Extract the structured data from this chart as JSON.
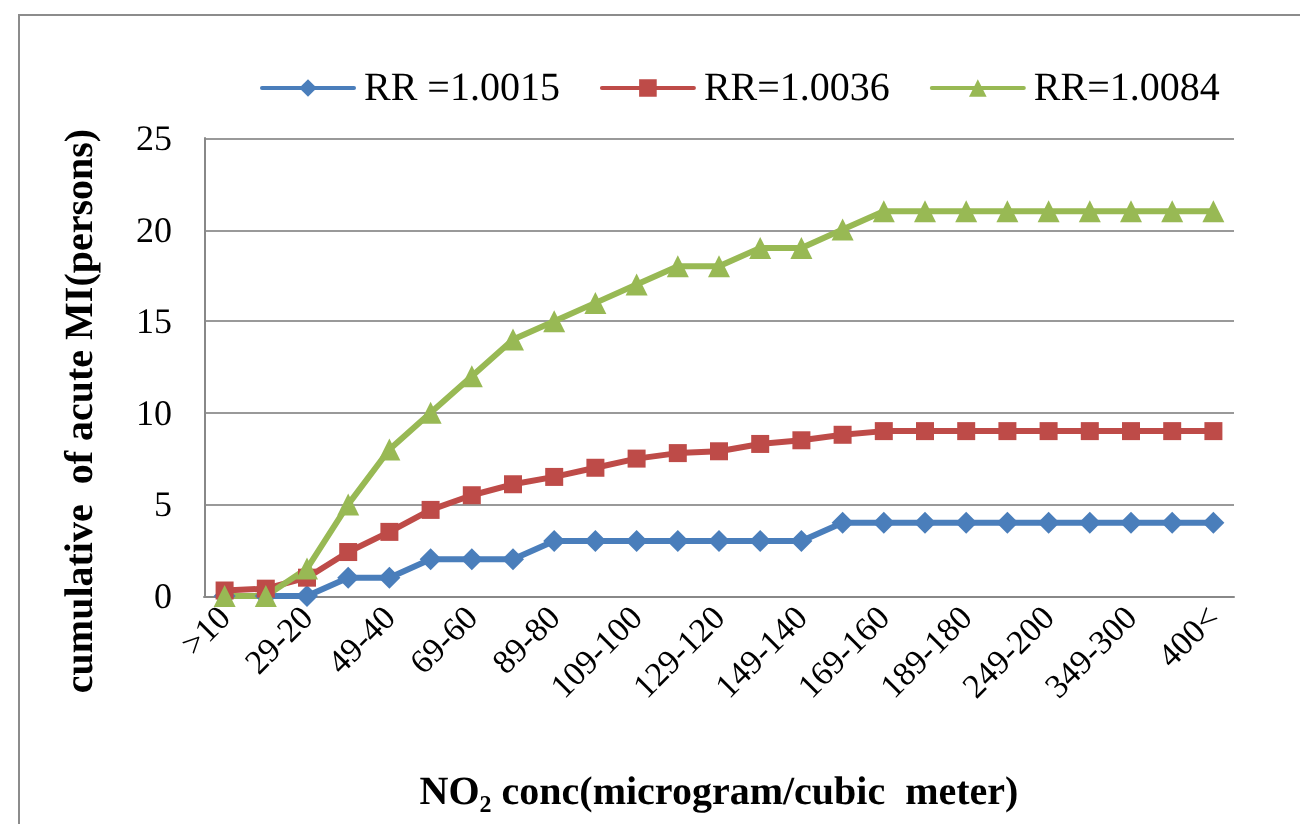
{
  "chart_data": {
    "type": "line",
    "xlabel": "NO₂ conc(microgram/cubic  meter)",
    "ylabel": "cumulative  of acute MI(persons)",
    "categories": [
      ">10",
      null,
      "29-20",
      null,
      "49-40",
      null,
      "69-60",
      null,
      "89-80",
      null,
      "109-100",
      null,
      "129-120",
      null,
      "149-140",
      null,
      "169-160",
      null,
      "189-180",
      null,
      "249-200",
      null,
      "349-300",
      null,
      "400<"
    ],
    "series": [
      {
        "name": "RR =1.0015",
        "color": "#4a7ebb",
        "marker": "diamond",
        "values": [
          0,
          0,
          0,
          1,
          1,
          2,
          2,
          2,
          3,
          3,
          3,
          3,
          3,
          3,
          3,
          4,
          4,
          4,
          4,
          4,
          4,
          4,
          4,
          4,
          4
        ]
      },
      {
        "name": "RR=1.0036",
        "color": "#be4b48",
        "marker": "square",
        "values": [
          0.3,
          0.4,
          1,
          2.4,
          3.5,
          4.7,
          5.5,
          6.1,
          6.5,
          7,
          7.5,
          7.8,
          7.9,
          8.3,
          8.5,
          8.8,
          9,
          9,
          9,
          9,
          9,
          9,
          9,
          9,
          9
        ]
      },
      {
        "name": "RR=1.0084",
        "color": "#98b954",
        "marker": "triangle",
        "values": [
          0,
          0,
          1.5,
          5,
          8,
          10,
          12,
          14,
          15,
          16,
          17,
          18,
          18,
          19,
          19,
          20,
          21,
          21,
          21,
          21,
          21,
          21,
          21,
          21,
          21
        ]
      }
    ],
    "ylim": [
      0,
      25
    ],
    "yticks": [
      0,
      5,
      10,
      15,
      20,
      25
    ],
    "grid": "y",
    "legend": "top",
    "line_style": "solid"
  }
}
